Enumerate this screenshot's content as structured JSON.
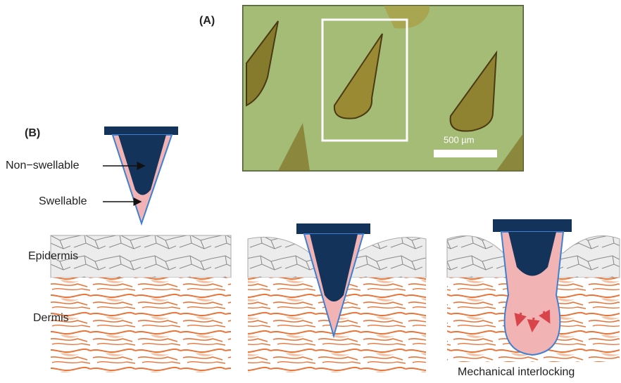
{
  "panel_a": {
    "label": "(A)",
    "scale_bar": "500 µm"
  },
  "panel_b": {
    "label": "(B)",
    "needle_labels": [
      "Non−swellable",
      "Swellable"
    ],
    "layers": [
      "Epidermis",
      "Dermis"
    ],
    "caption": "Mechanical interlocking"
  }
}
